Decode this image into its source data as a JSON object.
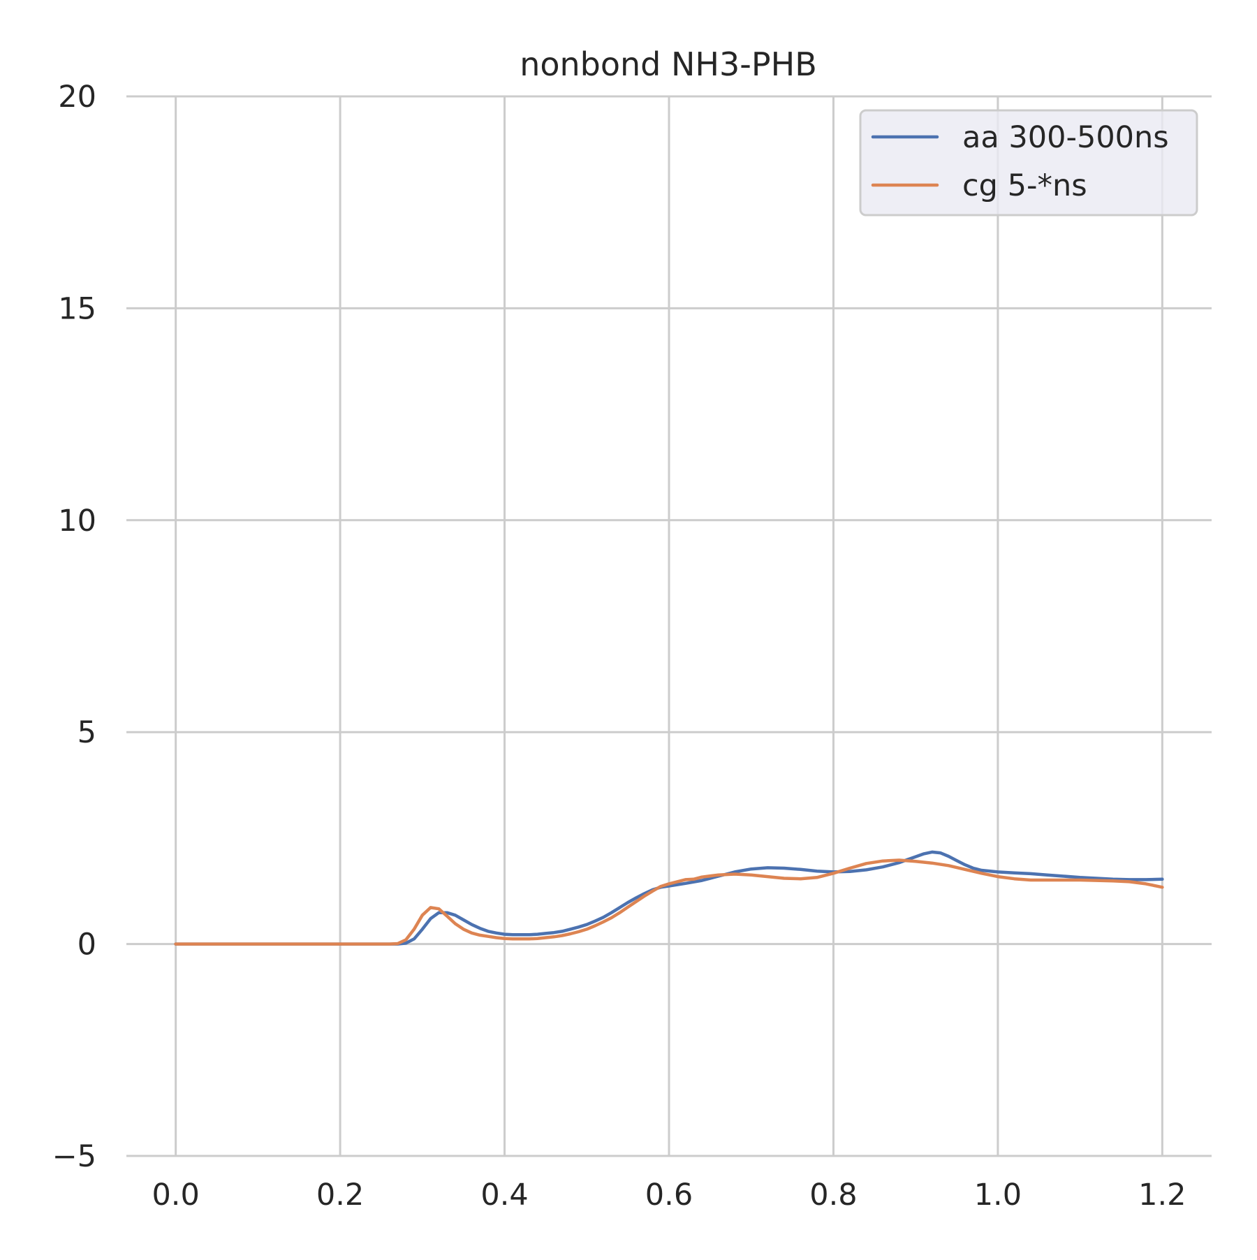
{
  "chart_data": {
    "type": "line",
    "title": "nonbond NH3-PHB",
    "xlabel": "",
    "ylabel": "",
    "xlim": [
      -0.06,
      1.26
    ],
    "ylim": [
      -5,
      20
    ],
    "xticks": [
      0.0,
      0.2,
      0.4,
      0.6,
      0.8,
      1.0,
      1.2
    ],
    "xtick_labels": [
      "0.0",
      "0.2",
      "0.4",
      "0.6",
      "0.8",
      "1.0",
      "1.2"
    ],
    "yticks": [
      -5,
      0,
      5,
      10,
      15,
      20
    ],
    "ytick_labels": [
      "−5",
      "0",
      "5",
      "10",
      "15",
      "20"
    ],
    "grid": true,
    "legend_position": "top-right",
    "series": [
      {
        "name": "aa 300-500ns",
        "color": "#4c72b0",
        "x": [
          0.0,
          0.1,
          0.2,
          0.25,
          0.27,
          0.28,
          0.29,
          0.3,
          0.31,
          0.32,
          0.33,
          0.34,
          0.35,
          0.36,
          0.37,
          0.38,
          0.39,
          0.4,
          0.41,
          0.42,
          0.43,
          0.44,
          0.45,
          0.46,
          0.47,
          0.48,
          0.49,
          0.5,
          0.51,
          0.52,
          0.53,
          0.54,
          0.55,
          0.56,
          0.57,
          0.58,
          0.59,
          0.6,
          0.62,
          0.64,
          0.66,
          0.68,
          0.7,
          0.72,
          0.74,
          0.76,
          0.78,
          0.8,
          0.82,
          0.84,
          0.86,
          0.88,
          0.89,
          0.9,
          0.91,
          0.92,
          0.93,
          0.94,
          0.95,
          0.96,
          0.97,
          0.98,
          1.0,
          1.02,
          1.04,
          1.06,
          1.08,
          1.1,
          1.12,
          1.14,
          1.16,
          1.18,
          1.2
        ],
        "y": [
          0.0,
          0.0,
          0.0,
          0.0,
          0.0,
          0.02,
          0.12,
          0.35,
          0.6,
          0.74,
          0.74,
          0.68,
          0.57,
          0.46,
          0.37,
          0.3,
          0.26,
          0.23,
          0.22,
          0.22,
          0.22,
          0.23,
          0.25,
          0.27,
          0.3,
          0.35,
          0.4,
          0.46,
          0.54,
          0.63,
          0.74,
          0.86,
          0.98,
          1.09,
          1.19,
          1.28,
          1.34,
          1.37,
          1.43,
          1.5,
          1.6,
          1.7,
          1.77,
          1.8,
          1.79,
          1.76,
          1.72,
          1.7,
          1.71,
          1.75,
          1.82,
          1.92,
          1.99,
          2.06,
          2.13,
          2.17,
          2.15,
          2.07,
          1.97,
          1.87,
          1.79,
          1.74,
          1.7,
          1.68,
          1.66,
          1.63,
          1.6,
          1.57,
          1.55,
          1.53,
          1.52,
          1.52,
          1.53
        ]
      },
      {
        "name": "cg 5-*ns",
        "color": "#dd8452",
        "x": [
          0.0,
          0.1,
          0.2,
          0.25,
          0.26,
          0.27,
          0.28,
          0.29,
          0.3,
          0.31,
          0.32,
          0.33,
          0.34,
          0.35,
          0.36,
          0.37,
          0.38,
          0.39,
          0.4,
          0.41,
          0.42,
          0.43,
          0.44,
          0.45,
          0.46,
          0.47,
          0.48,
          0.49,
          0.5,
          0.51,
          0.52,
          0.53,
          0.54,
          0.55,
          0.56,
          0.57,
          0.58,
          0.59,
          0.6,
          0.62,
          0.63,
          0.64,
          0.66,
          0.68,
          0.7,
          0.72,
          0.74,
          0.76,
          0.78,
          0.8,
          0.82,
          0.84,
          0.86,
          0.88,
          0.9,
          0.92,
          0.94,
          0.96,
          0.98,
          1.0,
          1.02,
          1.04,
          1.06,
          1.08,
          1.1,
          1.12,
          1.14,
          1.16,
          1.18,
          1.2
        ],
        "y": [
          0.0,
          0.0,
          0.0,
          0.0,
          0.0,
          0.01,
          0.1,
          0.35,
          0.68,
          0.86,
          0.83,
          0.66,
          0.48,
          0.35,
          0.26,
          0.21,
          0.18,
          0.15,
          0.13,
          0.12,
          0.12,
          0.12,
          0.13,
          0.15,
          0.17,
          0.2,
          0.24,
          0.29,
          0.35,
          0.43,
          0.52,
          0.62,
          0.74,
          0.87,
          1.0,
          1.13,
          1.25,
          1.36,
          1.42,
          1.52,
          1.53,
          1.58,
          1.63,
          1.65,
          1.63,
          1.59,
          1.55,
          1.54,
          1.57,
          1.67,
          1.79,
          1.9,
          1.96,
          1.98,
          1.95,
          1.91,
          1.85,
          1.76,
          1.67,
          1.59,
          1.54,
          1.51,
          1.51,
          1.51,
          1.51,
          1.5,
          1.49,
          1.47,
          1.42,
          1.34
        ]
      }
    ]
  }
}
